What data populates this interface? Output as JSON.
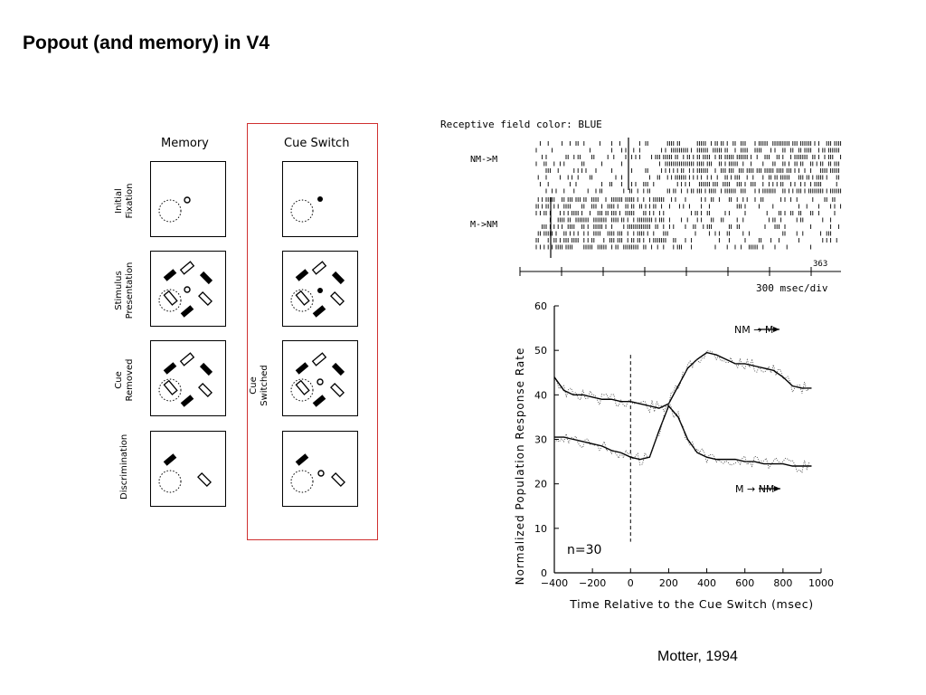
{
  "slide": {
    "title": "Popout (and memory) in V4",
    "citation": "Motter, 1994"
  },
  "diagram": {
    "memory_header": "Memory",
    "cue_switch_header": "Cue Switch",
    "row_labels": [
      "Initial\nFixation",
      "Stimulus\nPresentation",
      "Cue\nRemoved",
      "Discrimination"
    ],
    "cue_switched_label": "Cue\nSwitched"
  },
  "raster": {
    "title": "Receptive field color: BLUE",
    "condition_top": "NM->M",
    "condition_bottom": "M->NM",
    "cell_id": "363",
    "scale_label": "300 msec/div"
  },
  "chart_data": {
    "type": "line",
    "title": "",
    "xlabel": "Time Relative to the Cue Switch (msec)",
    "ylabel": "Normalized Population Response Rate",
    "xlim": [
      -400,
      1000
    ],
    "ylim": [
      0,
      60
    ],
    "x_ticks": [
      "-400",
      "-200",
      "0",
      "200",
      "400",
      "600",
      "800",
      "1000"
    ],
    "y_ticks": [
      "0",
      "10",
      "20",
      "30",
      "40",
      "50",
      "60"
    ],
    "annotation": "n=30",
    "x": [
      -400,
      -350,
      -300,
      -250,
      -200,
      -150,
      -100,
      -50,
      0,
      50,
      100,
      150,
      200,
      250,
      300,
      350,
      400,
      450,
      500,
      550,
      600,
      650,
      700,
      750,
      800,
      850,
      900,
      950
    ],
    "series": [
      {
        "name": "NM → M",
        "values": [
          44,
          41,
          40,
          40,
          39.5,
          39,
          39,
          38.5,
          38.5,
          38,
          37.5,
          37,
          38,
          42,
          46,
          48,
          49.5,
          49,
          48,
          47,
          47,
          46.5,
          46,
          45.5,
          44,
          42,
          41.5,
          41.5
        ]
      },
      {
        "name": "M → NM",
        "values": [
          30.5,
          30.5,
          30,
          29.5,
          29,
          28.5,
          27.5,
          27,
          26,
          25.5,
          26,
          32,
          37.5,
          35,
          30,
          27,
          26,
          25.5,
          25.5,
          25.5,
          25,
          25,
          24.5,
          24.5,
          24.5,
          24,
          24,
          24
        ]
      }
    ]
  }
}
